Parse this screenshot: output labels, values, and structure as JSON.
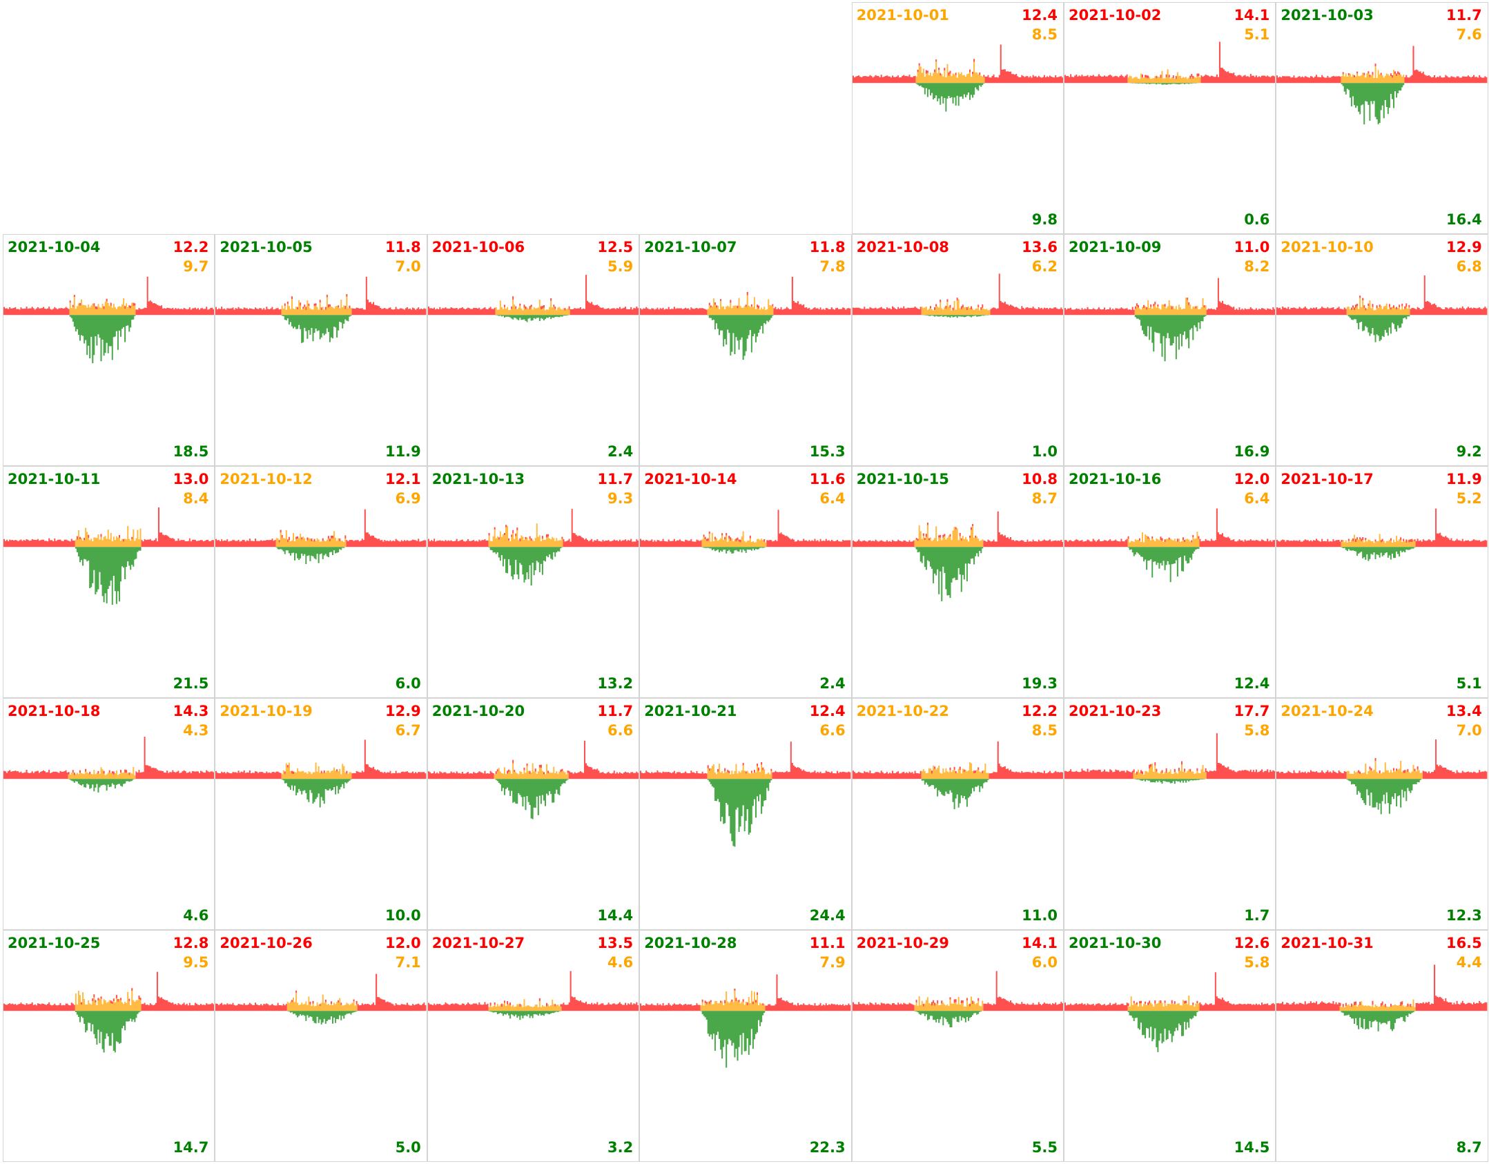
{
  "colors": {
    "grid": "#ff5050",
    "self_consumption": "#ffbb44",
    "solar": "#4aa84a",
    "label_red": "#ff0000",
    "label_orange": "#ffa500",
    "label_green": "#008000",
    "border": "#d4d4d4"
  },
  "chart_data": {
    "type": "area",
    "layout": "calendar-grid",
    "month": "2021-10",
    "weekday_offset_of_first_day": 4,
    "days": [
      {
        "date": "2021-10-01",
        "date_color": "orange",
        "grid": "12.4",
        "self": "8.5",
        "solar": "9.8"
      },
      {
        "date": "2021-10-02",
        "date_color": "red",
        "grid": "14.1",
        "self": "5.1",
        "solar": "0.6"
      },
      {
        "date": "2021-10-03",
        "date_color": "green",
        "grid": "11.7",
        "self": "7.6",
        "solar": "16.4"
      },
      {
        "date": "2021-10-04",
        "date_color": "green",
        "grid": "12.2",
        "self": "9.7",
        "solar": "18.5"
      },
      {
        "date": "2021-10-05",
        "date_color": "green",
        "grid": "11.8",
        "self": "7.0",
        "solar": "11.9"
      },
      {
        "date": "2021-10-06",
        "date_color": "red",
        "grid": "12.5",
        "self": "5.9",
        "solar": "2.4"
      },
      {
        "date": "2021-10-07",
        "date_color": "green",
        "grid": "11.8",
        "self": "7.8",
        "solar": "15.3"
      },
      {
        "date": "2021-10-08",
        "date_color": "red",
        "grid": "13.6",
        "self": "6.2",
        "solar": "1.0"
      },
      {
        "date": "2021-10-09",
        "date_color": "green",
        "grid": "11.0",
        "self": "8.2",
        "solar": "16.9"
      },
      {
        "date": "2021-10-10",
        "date_color": "orange",
        "grid": "12.9",
        "self": "6.8",
        "solar": "9.2"
      },
      {
        "date": "2021-10-11",
        "date_color": "green",
        "grid": "13.0",
        "self": "8.4",
        "solar": "21.5"
      },
      {
        "date": "2021-10-12",
        "date_color": "orange",
        "grid": "12.1",
        "self": "6.9",
        "solar": "6.0"
      },
      {
        "date": "2021-10-13",
        "date_color": "green",
        "grid": "11.7",
        "self": "9.3",
        "solar": "13.2"
      },
      {
        "date": "2021-10-14",
        "date_color": "red",
        "grid": "11.6",
        "self": "6.4",
        "solar": "2.4"
      },
      {
        "date": "2021-10-15",
        "date_color": "green",
        "grid": "10.8",
        "self": "8.7",
        "solar": "19.3"
      },
      {
        "date": "2021-10-16",
        "date_color": "green",
        "grid": "12.0",
        "self": "6.4",
        "solar": "12.4"
      },
      {
        "date": "2021-10-17",
        "date_color": "red",
        "grid": "11.9",
        "self": "5.2",
        "solar": "5.1"
      },
      {
        "date": "2021-10-18",
        "date_color": "red",
        "grid": "14.3",
        "self": "4.3",
        "solar": "4.6"
      },
      {
        "date": "2021-10-19",
        "date_color": "orange",
        "grid": "12.9",
        "self": "6.7",
        "solar": "10.0"
      },
      {
        "date": "2021-10-20",
        "date_color": "green",
        "grid": "11.7",
        "self": "6.6",
        "solar": "14.4"
      },
      {
        "date": "2021-10-21",
        "date_color": "green",
        "grid": "12.4",
        "self": "6.6",
        "solar": "24.4"
      },
      {
        "date": "2021-10-22",
        "date_color": "orange",
        "grid": "12.2",
        "self": "8.5",
        "solar": "11.0"
      },
      {
        "date": "2021-10-23",
        "date_color": "red",
        "grid": "17.7",
        "self": "5.8",
        "solar": "1.7"
      },
      {
        "date": "2021-10-24",
        "date_color": "orange",
        "grid": "13.4",
        "self": "7.0",
        "solar": "12.3"
      },
      {
        "date": "2021-10-25",
        "date_color": "green",
        "grid": "12.8",
        "self": "9.5",
        "solar": "14.7"
      },
      {
        "date": "2021-10-26",
        "date_color": "red",
        "grid": "12.0",
        "self": "7.1",
        "solar": "5.0"
      },
      {
        "date": "2021-10-27",
        "date_color": "red",
        "grid": "13.5",
        "self": "4.6",
        "solar": "3.2"
      },
      {
        "date": "2021-10-28",
        "date_color": "green",
        "grid": "11.1",
        "self": "7.9",
        "solar": "22.3"
      },
      {
        "date": "2021-10-29",
        "date_color": "red",
        "grid": "14.1",
        "self": "6.0",
        "solar": "5.5"
      },
      {
        "date": "2021-10-30",
        "date_color": "green",
        "grid": "12.6",
        "self": "5.8",
        "solar": "14.5"
      },
      {
        "date": "2021-10-31",
        "date_color": "red",
        "grid": "16.5",
        "self": "4.4",
        "solar": "8.7"
      }
    ]
  }
}
